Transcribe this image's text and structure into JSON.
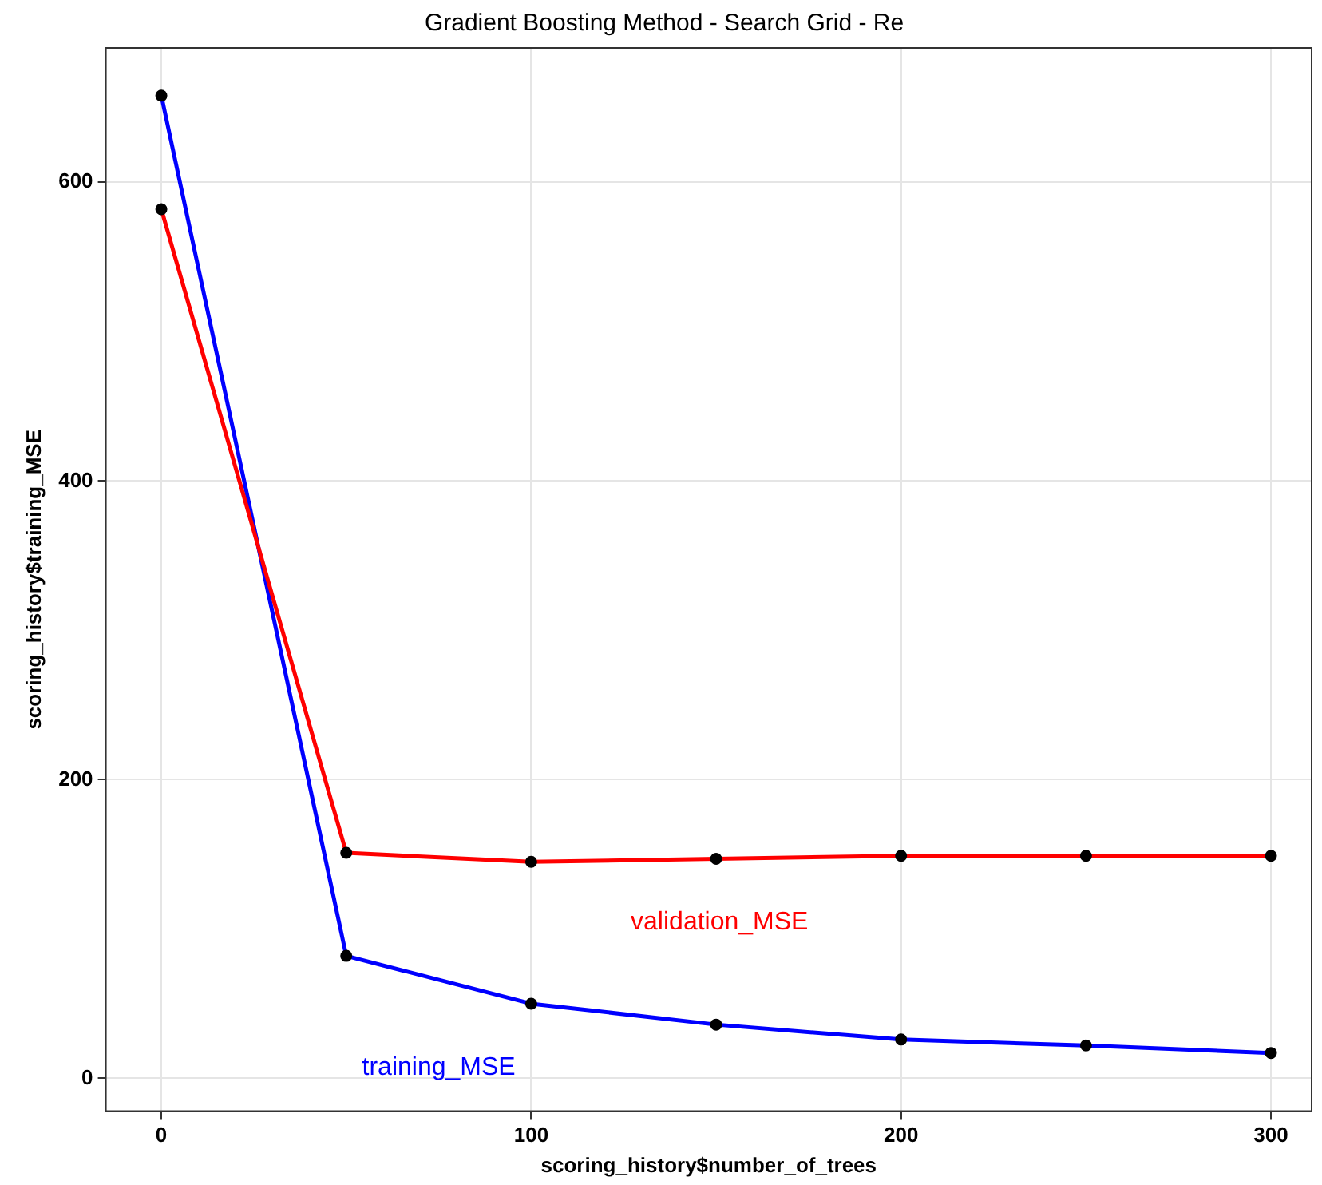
{
  "chart_data": {
    "type": "line",
    "title": "Gradient Boosting Method - Search Grid - Re",
    "xlabel": "scoring_history$number_of_trees",
    "ylabel": "scoring_history$training_MSE",
    "x": [
      0,
      50,
      100,
      150,
      200,
      250,
      300
    ],
    "series": [
      {
        "name": "validation_MSE",
        "color": "#ff0000",
        "values": [
          582,
          151,
          145,
          147,
          149,
          149,
          149
        ]
      },
      {
        "name": "training_MSE",
        "color": "#0000ff",
        "values": [
          658,
          82,
          50,
          36,
          26,
          22,
          17
        ]
      }
    ],
    "xlim": [
      -15,
      311
    ],
    "xticks": [
      0,
      100,
      200,
      300
    ],
    "ylim": [
      -22,
      690
    ],
    "yticks": [
      0,
      200,
      400,
      600
    ],
    "grid": true,
    "legend": false,
    "marker": "circle",
    "line_style": "solid"
  }
}
